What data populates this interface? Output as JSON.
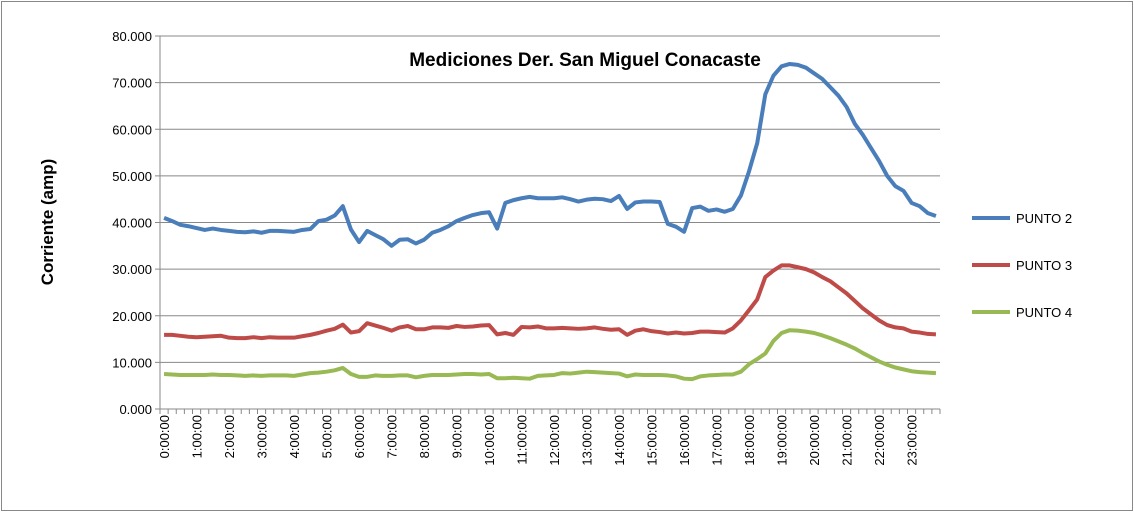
{
  "chart_data": {
    "type": "line",
    "title": "Mediciones Der. San Miguel Conacaste",
    "y_label": "Corriente (amp)",
    "categories": [
      "0:00:00",
      null,
      null,
      null,
      "1:00:00",
      null,
      null,
      null,
      "2:00:00",
      null,
      null,
      null,
      "3:00:00",
      null,
      null,
      null,
      "4:00:00",
      null,
      null,
      null,
      "5:00:00",
      null,
      null,
      null,
      "6:00:00",
      null,
      null,
      null,
      "7:00:00",
      null,
      null,
      null,
      "8:00:00",
      null,
      null,
      null,
      "9:00:00",
      null,
      null,
      null,
      "10:00:00",
      null,
      null,
      null,
      "11:00:00",
      null,
      null,
      null,
      "12:00:00",
      null,
      null,
      null,
      "13:00:00",
      null,
      null,
      null,
      "14:00:00",
      null,
      null,
      null,
      "15:00:00",
      null,
      null,
      null,
      "16:00:00",
      null,
      null,
      null,
      "17:00:00",
      null,
      null,
      null,
      "18:00:00",
      null,
      null,
      null,
      "19:00:00",
      null,
      null,
      null,
      "20:00:00",
      null,
      null,
      null,
      "21:00:00",
      null,
      null,
      null,
      "22:00:00",
      null,
      null,
      null,
      "23:00:00",
      null,
      null,
      null
    ],
    "series": [
      {
        "name": "PUNTO 2",
        "color": "#4a7ebb",
        "values": [
          41,
          40.3,
          39.5,
          39.2,
          38.8,
          38.4,
          38.7,
          38.4,
          38.2,
          38.0,
          37.9,
          38.1,
          37.8,
          38.2,
          38.2,
          38.1,
          38.0,
          38.4,
          38.6,
          40.3,
          40.6,
          41.5,
          43.5,
          38.5,
          35.8,
          38.2,
          37.3,
          36.4,
          35.0,
          36.3,
          36.4,
          35.5,
          36.3,
          37.8,
          38.4,
          39.2,
          40.3,
          41.0,
          41.6,
          42.0,
          42.2,
          38.7,
          44.2,
          44.8,
          45.2,
          45.5,
          45.2,
          45.2,
          45.2,
          45.4,
          45.0,
          44.5,
          44.9,
          45.1,
          45.0,
          44.6,
          45.7,
          42.9,
          44.3,
          44.5,
          44.5,
          44.4,
          39.7,
          39.1,
          38.0,
          43.1,
          43.4,
          42.5,
          42.8,
          42.3,
          42.9,
          45.8,
          51.0,
          57.0,
          67.5,
          71.5,
          73.5,
          74.0,
          73.8,
          73.2,
          72.0,
          70.8,
          69.0,
          67.2,
          64.8,
          61.2,
          58.8,
          56.0,
          53.2,
          50.0,
          47.8,
          46.8,
          44.2,
          43.5,
          42.0,
          41.4
        ]
      },
      {
        "name": "PUNTO 3",
        "color": "#be4b48",
        "values": [
          15.9,
          15.9,
          15.7,
          15.5,
          15.4,
          15.5,
          15.6,
          15.7,
          15.3,
          15.2,
          15.2,
          15.4,
          15.2,
          15.4,
          15.3,
          15.3,
          15.3,
          15.6,
          15.9,
          16.3,
          16.8,
          17.2,
          18.1,
          16.4,
          16.7,
          18.4,
          17.9,
          17.4,
          16.8,
          17.5,
          17.8,
          17.1,
          17.1,
          17.5,
          17.5,
          17.4,
          17.8,
          17.6,
          17.7,
          17.9,
          18.0,
          16.0,
          16.3,
          15.9,
          17.6,
          17.5,
          17.7,
          17.3,
          17.3,
          17.4,
          17.3,
          17.2,
          17.3,
          17.5,
          17.2,
          17.0,
          17.1,
          15.9,
          16.8,
          17.1,
          16.7,
          16.5,
          16.2,
          16.4,
          16.2,
          16.3,
          16.6,
          16.6,
          16.5,
          16.4,
          17.3,
          19.0,
          21.2,
          23.5,
          28.3,
          29.7,
          30.8,
          30.8,
          30.4,
          30.0,
          29.3,
          28.3,
          27.4,
          26.1,
          24.8,
          23.2,
          21.6,
          20.3,
          19.0,
          18.0,
          17.5,
          17.3,
          16.6,
          16.4,
          16.1,
          16.0
        ]
      },
      {
        "name": "PUNTO 4",
        "color": "#98b954",
        "values": [
          7.5,
          7.4,
          7.3,
          7.3,
          7.3,
          7.3,
          7.4,
          7.3,
          7.3,
          7.2,
          7.1,
          7.2,
          7.1,
          7.2,
          7.2,
          7.2,
          7.1,
          7.4,
          7.7,
          7.8,
          8.0,
          8.3,
          8.8,
          7.5,
          6.9,
          6.9,
          7.2,
          7.1,
          7.1,
          7.2,
          7.2,
          6.8,
          7.1,
          7.3,
          7.3,
          7.3,
          7.4,
          7.5,
          7.5,
          7.4,
          7.5,
          6.6,
          6.6,
          6.7,
          6.6,
          6.5,
          7.1,
          7.2,
          7.3,
          7.7,
          7.6,
          7.8,
          8.0,
          7.9,
          7.8,
          7.7,
          7.6,
          7.0,
          7.4,
          7.3,
          7.3,
          7.3,
          7.2,
          7.0,
          6.5,
          6.4,
          7.0,
          7.2,
          7.3,
          7.4,
          7.4,
          8.0,
          9.6,
          10.7,
          11.9,
          14.6,
          16.3,
          16.9,
          16.8,
          16.6,
          16.3,
          15.8,
          15.2,
          14.5,
          13.8,
          13.0,
          12.0,
          11.1,
          10.2,
          9.5,
          8.9,
          8.5,
          8.1,
          7.9,
          7.8,
          7.7
        ]
      }
    ],
    "ylim": [
      0,
      80
    ],
    "yticks": [
      {
        "value": 0,
        "label": "0.000"
      },
      {
        "value": 10,
        "label": "10.000"
      },
      {
        "value": 20,
        "label": "20.000"
      },
      {
        "value": 30,
        "label": "30.000"
      },
      {
        "value": 40,
        "label": "40.000"
      },
      {
        "value": 50,
        "label": "50.000"
      },
      {
        "value": 60,
        "label": "60.000"
      },
      {
        "value": 70,
        "label": "70.000"
      },
      {
        "value": 80,
        "label": "80.000"
      }
    ],
    "grid": true,
    "legend": "right"
  }
}
